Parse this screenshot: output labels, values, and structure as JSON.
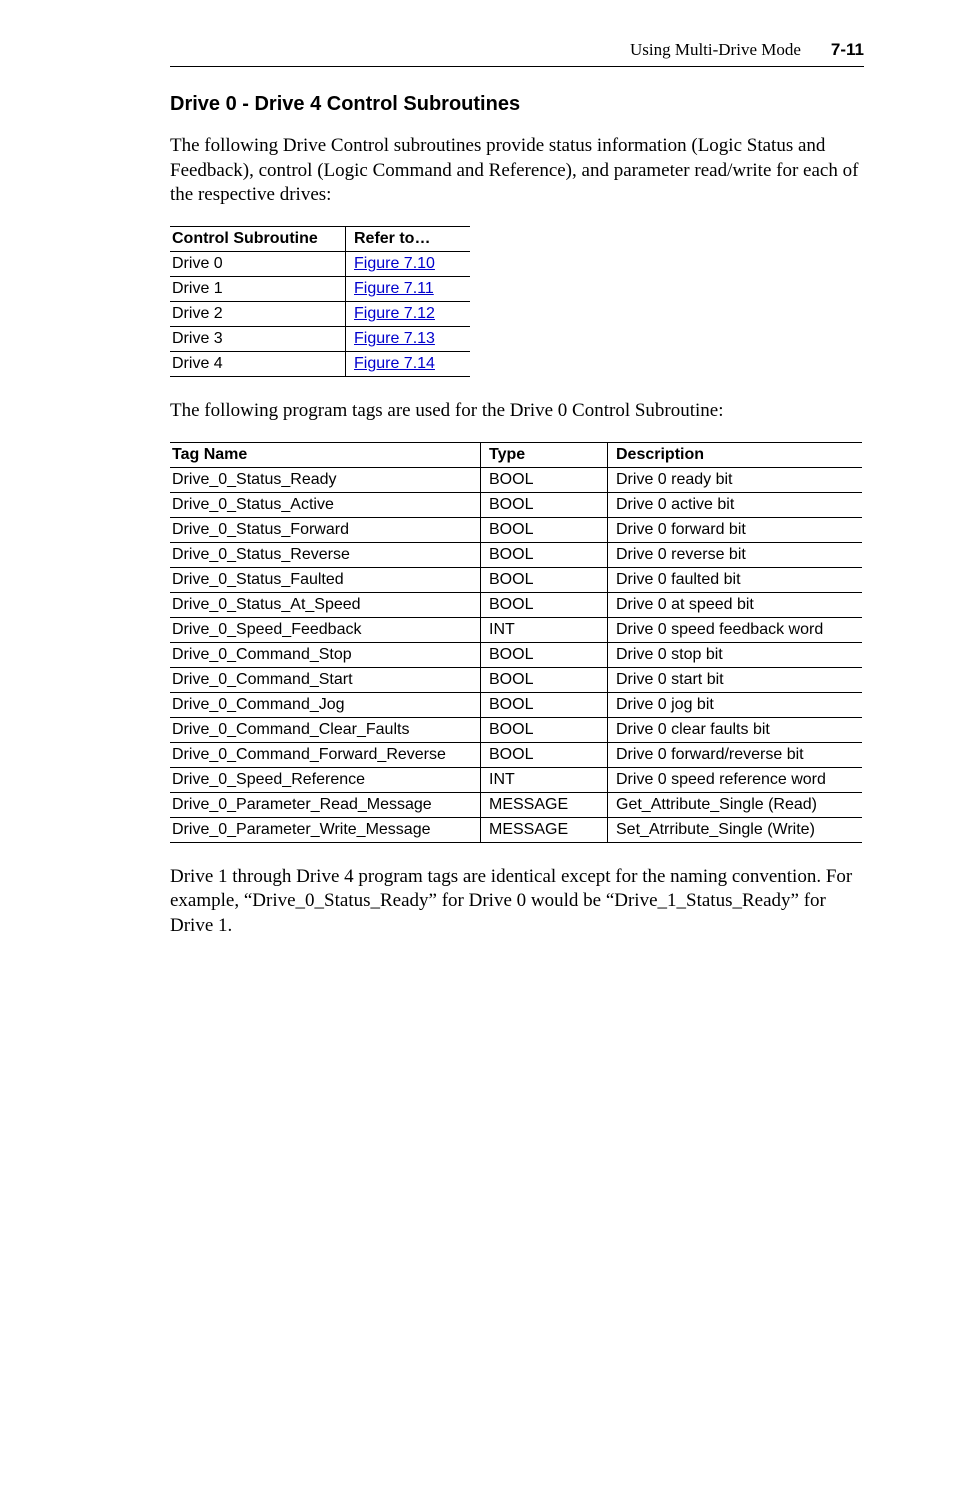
{
  "header": {
    "running_title": "Using Multi-Drive Mode",
    "page_number": "7-11"
  },
  "section": {
    "heading": "Drive 0 - Drive 4 Control Subroutines",
    "intro": "The following Drive Control subroutines provide status information (Logic Status and Feedback), control (Logic Command and Reference), and parameter read/write for each of the respective drives:"
  },
  "subroutine_table": {
    "columns": [
      "Control Subroutine",
      "Refer to…"
    ],
    "rows": [
      {
        "name": "Drive 0",
        "ref": "Figure 7.10"
      },
      {
        "name": "Drive 1",
        "ref": "Figure 7.11"
      },
      {
        "name": "Drive 2",
        "ref": "Figure 7.12"
      },
      {
        "name": "Drive 3",
        "ref": "Figure 7.13"
      },
      {
        "name": "Drive 4",
        "ref": "Figure 7.14"
      }
    ]
  },
  "tag_intro": "The following program tags are used for the Drive 0 Control Subroutine:",
  "tag_table": {
    "columns": [
      "Tag Name",
      "Type",
      "Description"
    ],
    "rows": [
      {
        "tag": "Drive_0_Status_Ready",
        "type": "BOOL",
        "desc": "Drive 0 ready bit"
      },
      {
        "tag": "Drive_0_Status_Active",
        "type": "BOOL",
        "desc": "Drive 0 active bit"
      },
      {
        "tag": "Drive_0_Status_Forward",
        "type": "BOOL",
        "desc": "Drive 0 forward bit"
      },
      {
        "tag": "Drive_0_Status_Reverse",
        "type": "BOOL",
        "desc": "Drive 0 reverse bit"
      },
      {
        "tag": "Drive_0_Status_Faulted",
        "type": "BOOL",
        "desc": "Drive 0 faulted bit"
      },
      {
        "tag": "Drive_0_Status_At_Speed",
        "type": "BOOL",
        "desc": "Drive 0 at speed bit"
      },
      {
        "tag": "Drive_0_Speed_Feedback",
        "type": "INT",
        "desc": "Drive 0 speed feedback word"
      },
      {
        "tag": "Drive_0_Command_Stop",
        "type": "BOOL",
        "desc": "Drive 0 stop bit"
      },
      {
        "tag": "Drive_0_Command_Start",
        "type": "BOOL",
        "desc": "Drive 0 start bit"
      },
      {
        "tag": "Drive_0_Command_Jog",
        "type": "BOOL",
        "desc": "Drive 0 jog bit"
      },
      {
        "tag": "Drive_0_Command_Clear_Faults",
        "type": "BOOL",
        "desc": "Drive 0 clear faults bit"
      },
      {
        "tag": "Drive_0_Command_Forward_Reverse",
        "type": "BOOL",
        "desc": "Drive 0 forward/reverse bit"
      },
      {
        "tag": "Drive_0_Speed_Reference",
        "type": "INT",
        "desc": "Drive 0 speed reference word"
      },
      {
        "tag": "Drive_0_Parameter_Read_Message",
        "type": "MESSAGE",
        "desc": "Get_Attribute_Single (Read)"
      },
      {
        "tag": "Drive_0_Parameter_Write_Message",
        "type": "MESSAGE",
        "desc": "Set_Atrribute_Single (Write)"
      }
    ]
  },
  "closing": "Drive 1 through Drive 4 program tags are identical except for the naming convention. For example, “Drive_0_Status_Ready” for Drive 0 would be “Drive_1_Status_Ready” for Drive 1."
}
